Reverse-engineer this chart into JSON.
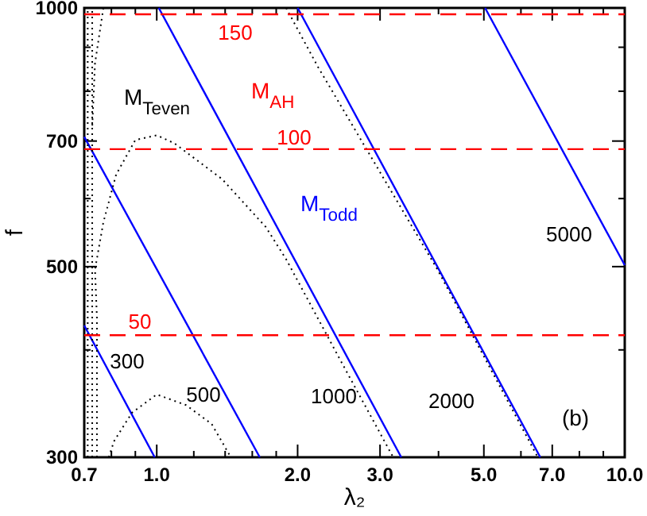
{
  "chart_data": {
    "type": "line",
    "xlabel": "λ₂",
    "ylabel": "f",
    "log": "xy",
    "grid": false,
    "xlim": [
      0.7,
      10
    ],
    "ylim": [
      300,
      1000
    ],
    "xticks": [
      {
        "value": 0.7,
        "label": "0.7"
      },
      {
        "value": 0.8,
        "label": null
      },
      {
        "value": 0.9,
        "label": null
      },
      {
        "value": 1,
        "label": "1.0"
      },
      {
        "value": 1.2,
        "label": null
      },
      {
        "value": 1.4,
        "label": null
      },
      {
        "value": 1.6,
        "label": null
      },
      {
        "value": 1.8,
        "label": null
      },
      {
        "value": 2,
        "label": "2.0"
      },
      {
        "value": 3,
        "label": "3.0"
      },
      {
        "value": 4,
        "label": null
      },
      {
        "value": 5,
        "label": "5.0"
      },
      {
        "value": 6,
        "label": null
      },
      {
        "value": 7,
        "label": "7.0"
      },
      {
        "value": 8,
        "label": null
      },
      {
        "value": 9,
        "label": null
      },
      {
        "value": 10,
        "label": "10.0"
      }
    ],
    "yticks": [
      300,
      {
        "value": 400,
        "label": null
      },
      500,
      {
        "value": 600,
        "label": null
      },
      700,
      {
        "value": 800,
        "label": null
      },
      {
        "value": 900,
        "label": null
      },
      1000
    ],
    "series": [
      {
        "name": "300",
        "color": "#0000ff",
        "line_style": "solid",
        "x": [
          0.7,
          0.99
        ],
        "values": [
          427,
          300
        ]
      },
      {
        "name": "500",
        "color": "#0000ff",
        "line_style": "solid",
        "x": [
          0.7,
          1.66
        ],
        "values": [
          708,
          300
        ]
      },
      {
        "name": "1000",
        "color": "#0000ff",
        "line_style": "solid",
        "x": [
          1.01,
          3.33
        ],
        "values": [
          1000,
          300
        ]
      },
      {
        "name": "2000",
        "color": "#0000ff",
        "line_style": "solid",
        "x": [
          2.0,
          6.6
        ],
        "values": [
          1000,
          300
        ]
      },
      {
        "name": "5000",
        "color": "#0000ff",
        "line_style": "solid",
        "x": [
          5.03,
          10
        ],
        "values": [
          1000,
          502
        ]
      },
      {
        "color": "#000000",
        "line_style": "dotted",
        "x": [
          0.745,
          0.745,
          0.738,
          0.769,
          0.819,
          0.9,
          1.0,
          1.09,
          1.38,
          1.71,
          1.89,
          2.45,
          3.2
        ],
        "values": [
          300,
          436,
          496,
          563,
          640,
          702,
          711,
          696,
          632,
          556,
          510,
          392,
          300
        ]
      },
      {
        "color": "#000000",
        "line_style": "dotted",
        "x": [
          0.79,
          0.81,
          0.885,
          1.0,
          1.155,
          1.31,
          1.44
        ],
        "values": [
          300,
          313,
          338,
          355,
          345,
          328,
          300
        ]
      },
      {
        "color": "#000000",
        "line_style": "dotted",
        "x": [
          0.712,
          0.712
        ],
        "values": [
          300,
          1000
        ]
      },
      {
        "color": "#000000",
        "line_style": "dotted",
        "x": [
          0.728,
          0.728
        ],
        "values": [
          300,
          1000
        ]
      },
      {
        "color": "#000000",
        "line_style": "dotted",
        "x": [
          0.769,
          0.738,
          0.728
        ],
        "values": [
          1000,
          862,
          727
        ]
      },
      {
        "color": "#000000",
        "line_style": "dotted",
        "x": [
          1.89,
          2.21,
          3.02,
          3.98,
          6.52
        ],
        "values": [
          1000,
          854,
          640,
          496,
          300
        ]
      },
      {
        "name": "150",
        "color": "#ff0000",
        "line_style": "dashed",
        "x": [
          0.7,
          10
        ],
        "values": [
          983,
          983
        ]
      },
      {
        "name": "100",
        "color": "#ff0000",
        "line_style": "dashed",
        "x": [
          0.7,
          10
        ],
        "values": [
          685,
          685
        ]
      },
      {
        "name": "50",
        "color": "#ff0000",
        "line_style": "dashed",
        "x": [
          0.7,
          10
        ],
        "values": [
          416,
          416
        ]
      }
    ],
    "annotations": [
      "M$_{Teven}$",
      "M$_{AH}$",
      "M$_{Todd}$",
      "(b)"
    ]
  }
}
